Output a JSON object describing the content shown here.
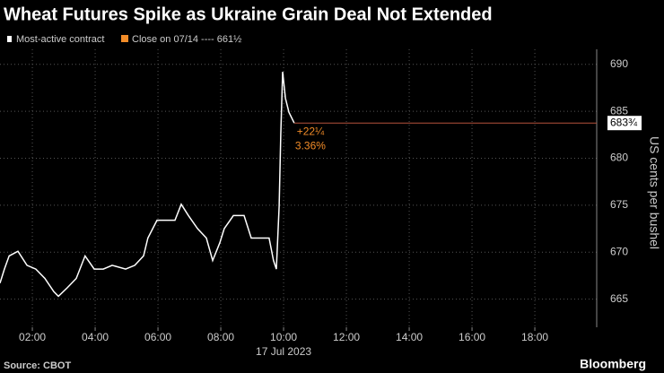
{
  "chart_data": {
    "type": "line",
    "title": "Wheat Futures Spike as Ukraine Grain Deal Not Extended",
    "series": [
      {
        "name": "Most-active contract",
        "color": "#ffffff",
        "x": [
          0.97,
          1.11,
          1.26,
          1.54,
          1.83,
          2.11,
          2.4,
          2.68,
          2.83,
          3.11,
          3.4,
          3.68,
          3.97,
          4.26,
          4.54,
          4.97,
          5.26,
          5.54,
          5.68,
          5.97,
          6.26,
          6.54,
          6.74,
          6.97,
          7.26,
          7.54,
          7.74,
          7.97,
          8.11,
          8.4,
          8.74,
          8.97,
          9.26,
          9.54,
          9.68,
          9.77,
          9.86,
          9.91,
          9.97,
          10.06,
          10.17,
          10.34
        ],
        "values": [
          666.7,
          668.2,
          669.6,
          670.1,
          668.6,
          668.2,
          667.2,
          665.8,
          665.3,
          666.2,
          667.2,
          669.6,
          668.2,
          668.2,
          668.6,
          668.2,
          668.6,
          669.6,
          671.5,
          673.4,
          673.4,
          673.4,
          675.1,
          673.9,
          672.5,
          671.5,
          669.1,
          671.0,
          672.5,
          673.9,
          673.9,
          671.5,
          671.5,
          671.5,
          669.1,
          668.2,
          674.9,
          682.5,
          689.2,
          686.4,
          684.9,
          683.75
        ]
      }
    ],
    "last_label": {
      "value": 683.75,
      "label": "683¾"
    },
    "reference": {
      "name": "Close on 07/14 ---- 661½",
      "color": "#f28c28"
    },
    "annotations": [
      "+22¼",
      "3.36%"
    ],
    "annotation_color": "#f28c28",
    "xlim": [
      0.97,
      19.97
    ],
    "xticks": [
      {
        "value": 2,
        "label": "02:00"
      },
      {
        "value": 4,
        "label": "04:00"
      },
      {
        "value": 6,
        "label": "06:00"
      },
      {
        "value": 8,
        "label": "08:00"
      },
      {
        "value": 10,
        "label": "10:00"
      },
      {
        "value": 12,
        "label": "12:00"
      },
      {
        "value": 14,
        "label": "14:00"
      },
      {
        "value": 16,
        "label": "16:00"
      },
      {
        "value": 18,
        "label": "18:00"
      }
    ],
    "x_date_label": "17 Jul 2023",
    "ylim": [
      662,
      691.6
    ],
    "yticks": [
      665,
      670,
      675,
      680,
      685,
      690
    ],
    "ylabel": "US cents per bushel",
    "grid": true,
    "source": "Source: CBOT",
    "brand": "Bloomberg"
  }
}
